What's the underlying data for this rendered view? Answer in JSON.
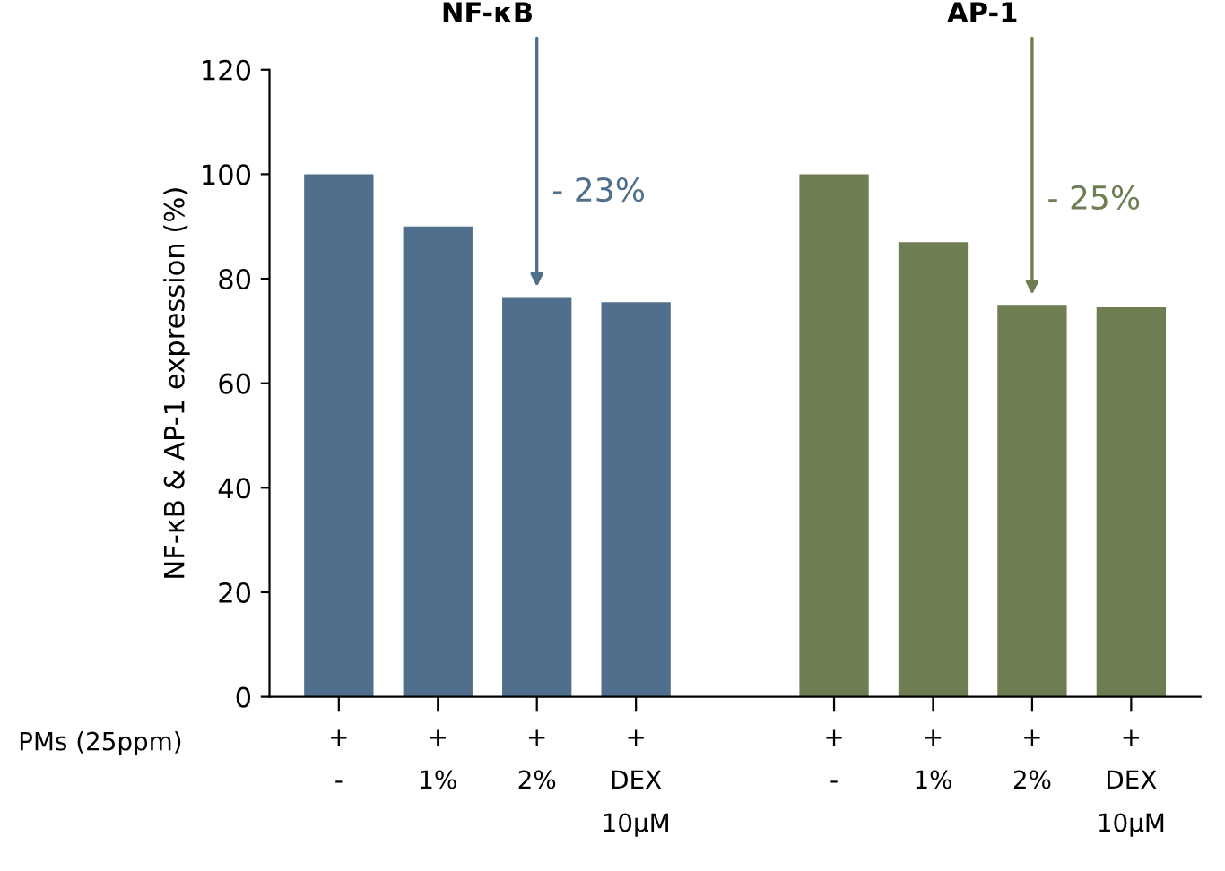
{
  "chart_data": {
    "type": "bar",
    "ylabel": "NF-κB & AP-1 expression (%)",
    "categories": [
      "+\n-",
      "+\n1%",
      "+\n2%",
      "+\nDEX\n10µM",
      null,
      "+\n-",
      "+\n1%",
      "+\n2%",
      "+\nDEX\n10µM"
    ],
    "series": [
      {
        "name": "NF-κB",
        "color": "#4f6f8c",
        "values": [
          100,
          90,
          76.5,
          75.5,
          null,
          null,
          null,
          null,
          null
        ]
      },
      {
        "name": "AP-1",
        "color": "#6f7d52",
        "values": [
          null,
          null,
          null,
          null,
          null,
          100,
          87,
          75,
          74.5
        ]
      }
    ],
    "annotations": [
      "PMs (25ppm)",
      "- 23%",
      "- 25%"
    ],
    "ylim": [
      0,
      120
    ],
    "yticks": [
      0,
      20,
      40,
      60,
      80,
      100,
      120
    ],
    "grid": false,
    "legend": false
  }
}
